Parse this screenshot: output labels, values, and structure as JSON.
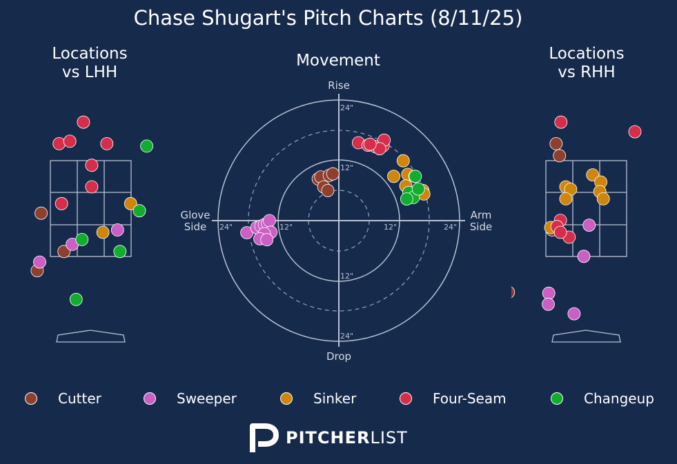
{
  "title": "Chase Shugart's Pitch Charts (8/11/25)",
  "panels": {
    "lhh": {
      "title_line1": "Locations",
      "title_line2": "vs LHH"
    },
    "rhh": {
      "title_line1": "Locations",
      "title_line2": "vs RHH"
    },
    "movement": {
      "title": "Movement",
      "labels": {
        "top": "Rise",
        "bottom": "Drop",
        "left_1": "Glove",
        "left_2": "Side",
        "right_1": "Arm",
        "right_2": "Side"
      },
      "ring_labels": [
        "24\"",
        "12\"",
        "12\"",
        "24\"",
        "12\"",
        "24\"",
        "12\"",
        "24\""
      ]
    }
  },
  "brand": {
    "bold": "PITCHER",
    "light": "LIST"
  },
  "colors": {
    "background": "#162a4c",
    "Cutter": "#8f3f2d",
    "Sweeper": "#cc5fc3",
    "Sinker": "#ce860c",
    "Four-Seam": "#d52d4a",
    "Changeup": "#11ad2e"
  },
  "legend": [
    "Cutter",
    "Sweeper",
    "Sinker",
    "Four-Seam",
    "Changeup"
  ],
  "chart_data": [
    {
      "type": "scatter",
      "title": "Locations vs LHH",
      "xlabel": "horizontal location (catcher view)",
      "ylabel": "vertical location",
      "xlim": [
        -1.5,
        1.5
      ],
      "ylim": [
        0.0,
        5.0
      ],
      "strike_zone": {
        "x": [
          -0.83,
          0.83
        ],
        "y": [
          1.5,
          3.5
        ]
      },
      "series": [
        {
          "name": "Cutter",
          "points": [
            [
              -1.02,
              2.4
            ],
            [
              -0.55,
              1.6
            ],
            [
              -1.1,
              1.2
            ]
          ]
        },
        {
          "name": "Sweeper",
          "points": [
            [
              0.55,
              2.05
            ],
            [
              -0.38,
              1.75
            ],
            [
              -1.05,
              1.38
            ]
          ]
        },
        {
          "name": "Sinker",
          "points": [
            [
              0.82,
              2.6
            ],
            [
              0.25,
              2.0
            ]
          ]
        },
        {
          "name": "Four-Seam",
          "points": [
            [
              -0.15,
              4.3
            ],
            [
              -0.65,
              3.85
            ],
            [
              -0.43,
              3.9
            ],
            [
              0.33,
              3.85
            ],
            [
              0.02,
              3.4
            ],
            [
              0.02,
              2.95
            ],
            [
              -0.6,
              2.6
            ]
          ]
        },
        {
          "name": "Changeup",
          "points": [
            [
              1.15,
              3.8
            ],
            [
              1.0,
              2.45
            ],
            [
              -0.18,
              1.85
            ],
            [
              0.6,
              1.6
            ],
            [
              -0.3,
              0.6
            ]
          ]
        }
      ]
    },
    {
      "type": "scatter",
      "title": "Movement",
      "xlabel": "horizontal break (in), glove side to arm side",
      "ylabel": "vertical break (in)",
      "xlim": [
        -24,
        24
      ],
      "ylim": [
        -24,
        24
      ],
      "rings": [
        6,
        12,
        18,
        24
      ],
      "series": [
        {
          "name": "Cutter",
          "points": [
            [
              -4.1,
              8.3
            ],
            [
              -3.6,
              8.7
            ],
            [
              -1.9,
              9.0
            ],
            [
              -1.2,
              9.3
            ],
            [
              -3.0,
              6.7
            ],
            [
              -2.2,
              6.0
            ]
          ]
        },
        {
          "name": "Sweeper",
          "points": [
            [
              -18.3,
              -2.4
            ],
            [
              -16.3,
              -1.4
            ],
            [
              -15.5,
              -1.1
            ],
            [
              -14.8,
              -0.8
            ],
            [
              -14.2,
              -0.6
            ],
            [
              -13.8,
              0.0
            ],
            [
              -13.5,
              -2.3
            ],
            [
              -14.8,
              -2.6
            ],
            [
              -15.7,
              -3.6
            ],
            [
              -14.3,
              -3.8
            ]
          ]
        },
        {
          "name": "Sinker",
          "points": [
            [
              12.8,
              11.9
            ],
            [
              10.9,
              8.8
            ],
            [
              13.7,
              9.2
            ],
            [
              15.1,
              8.8
            ],
            [
              13.3,
              6.9
            ],
            [
              16.7,
              6.0
            ],
            [
              16.9,
              5.3
            ]
          ]
        },
        {
          "name": "Four-Seam",
          "points": [
            [
              3.9,
              15.5
            ],
            [
              5.8,
              15.0
            ],
            [
              7.3,
              14.7
            ],
            [
              8.8,
              14.9
            ],
            [
              9.0,
              16.0
            ],
            [
              8.1,
              14.3
            ],
            [
              6.2,
              15.2
            ]
          ]
        },
        {
          "name": "Changeup",
          "points": [
            [
              13.9,
              5.6
            ],
            [
              14.8,
              4.6
            ],
            [
              13.5,
              4.3
            ],
            [
              15.8,
              6.3
            ],
            [
              15.2,
              8.8
            ]
          ]
        }
      ]
    },
    {
      "type": "scatter",
      "title": "Locations vs RHH",
      "xlabel": "horizontal location (catcher view)",
      "ylabel": "vertical location",
      "xlim": [
        -1.5,
        1.5
      ],
      "ylim": [
        0.0,
        5.0
      ],
      "strike_zone": {
        "x": [
          -0.83,
          0.83
        ],
        "y": [
          1.5,
          3.5
        ]
      },
      "series": [
        {
          "name": "Cutter",
          "points": [
            [
              -0.62,
              3.85
            ],
            [
              -0.55,
              3.6
            ],
            [
              -0.7,
              2.05
            ],
            [
              -1.6,
              0.75
            ]
          ]
        },
        {
          "name": "Sweeper",
          "points": [
            [
              0.06,
              2.15
            ],
            [
              -0.05,
              1.5
            ],
            [
              -0.77,
              0.73
            ],
            [
              -0.78,
              0.5
            ],
            [
              -0.25,
              0.3
            ]
          ]
        },
        {
          "name": "Sinker",
          "points": [
            [
              0.13,
              3.2
            ],
            [
              0.3,
              3.05
            ],
            [
              0.28,
              2.85
            ],
            [
              0.35,
              2.7
            ],
            [
              -0.42,
              2.95
            ],
            [
              -0.32,
              2.9
            ],
            [
              -0.42,
              2.7
            ],
            [
              -0.73,
              2.1
            ]
          ]
        },
        {
          "name": "Four-Seam",
          "points": [
            [
              -0.52,
              4.3
            ],
            [
              1.0,
              4.1
            ],
            [
              -0.53,
              2.25
            ],
            [
              -0.6,
              2.12
            ],
            [
              -0.35,
              1.9
            ],
            [
              -0.53,
              2.0
            ]
          ]
        },
        {
          "name": "Changeup",
          "points": []
        }
      ]
    }
  ]
}
